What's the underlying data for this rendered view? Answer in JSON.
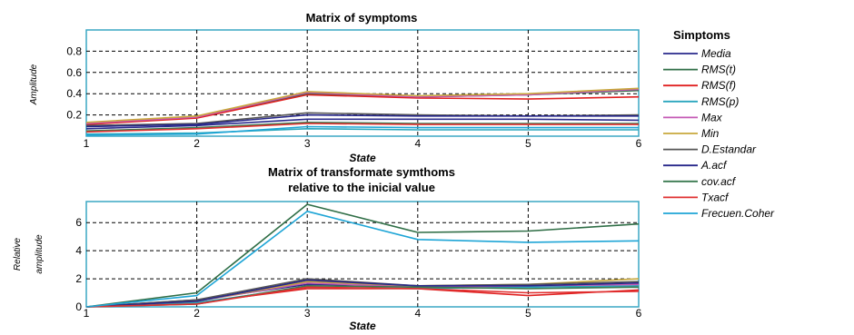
{
  "chart_data": [
    {
      "type": "line",
      "title": "Matrix of symptoms",
      "xlabel": "State",
      "ylabel": "Amplitude",
      "x": [
        1,
        2,
        3,
        4,
        5,
        6
      ],
      "xticks": [
        "1",
        "2",
        "3",
        "4",
        "5",
        "6"
      ],
      "xlim": [
        1,
        6
      ],
      "ylim": [
        0,
        1.0
      ],
      "yticks": [
        {
          "value": 0.2,
          "label": "0.2"
        },
        {
          "value": 0.4,
          "label": "0.4"
        },
        {
          "value": 0.6,
          "label": "0.6"
        },
        {
          "value": 0.8,
          "label": "0.8"
        }
      ],
      "grid": true,
      "series": [
        {
          "name": "Media",
          "values": [
            0.07,
            0.1,
            0.16,
            0.16,
            0.16,
            0.15
          ]
        },
        {
          "name": "RMS(t)",
          "values": [
            0.11,
            0.18,
            0.4,
            0.37,
            0.39,
            0.43
          ]
        },
        {
          "name": "RMS(f)",
          "values": [
            0.11,
            0.17,
            0.39,
            0.36,
            0.35,
            0.37
          ]
        },
        {
          "name": "RMS(p)",
          "values": [
            0.02,
            0.03,
            0.07,
            0.06,
            0.06,
            0.06
          ]
        },
        {
          "name": "Max",
          "values": [
            0.12,
            0.18,
            0.41,
            0.37,
            0.39,
            0.44
          ]
        },
        {
          "name": "Min",
          "values": [
            0.13,
            0.19,
            0.42,
            0.38,
            0.4,
            0.45
          ]
        },
        {
          "name": "D.Estandar",
          "values": [
            0.1,
            0.12,
            0.22,
            0.2,
            0.19,
            0.2
          ]
        },
        {
          "name": "A.acf",
          "values": [
            0.09,
            0.11,
            0.2,
            0.19,
            0.19,
            0.19
          ]
        },
        {
          "name": "cov.acf",
          "values": [
            0.05,
            0.08,
            0.13,
            0.12,
            0.12,
            0.12
          ]
        },
        {
          "name": "Txacf",
          "values": [
            0.04,
            0.07,
            0.12,
            0.11,
            0.11,
            0.11
          ]
        },
        {
          "name": "Frecuen.Coher",
          "values": [
            0.01,
            0.02,
            0.09,
            0.08,
            0.08,
            0.08
          ]
        }
      ]
    },
    {
      "type": "line",
      "title": "Matrix of transformate symthoms relative to the inicial value",
      "title_lines": [
        "Matrix of transformate symthoms",
        "relative to the inicial value"
      ],
      "xlabel": "State",
      "ylabel": "Relative amplitude",
      "ylabel_lines": [
        "Relative",
        "amplitude"
      ],
      "x": [
        1,
        2,
        3,
        4,
        5,
        6
      ],
      "xticks": [
        "1",
        "2",
        "3",
        "4",
        "5",
        "6"
      ],
      "xlim": [
        1,
        6
      ],
      "ylim": [
        0,
        7.5
      ],
      "yticks": [
        {
          "value": 0,
          "label": "0"
        },
        {
          "value": 2,
          "label": "2"
        },
        {
          "value": 4,
          "label": "4"
        },
        {
          "value": 6,
          "label": "6"
        }
      ],
      "grid": true,
      "series": [
        {
          "name": "Media",
          "values": [
            0,
            0.5,
            1.6,
            1.5,
            1.5,
            1.4
          ]
        },
        {
          "name": "RMS(t)",
          "values": [
            0,
            1.0,
            7.3,
            5.3,
            5.4,
            5.9
          ]
        },
        {
          "name": "RMS(f)",
          "values": [
            0,
            0.3,
            1.3,
            1.3,
            0.8,
            1.2
          ]
        },
        {
          "name": "RMS(p)",
          "values": [
            0,
            0.3,
            1.4,
            1.3,
            1.4,
            1.5
          ]
        },
        {
          "name": "Max",
          "values": [
            0,
            0.4,
            1.7,
            1.4,
            1.5,
            1.6
          ]
        },
        {
          "name": "Min",
          "values": [
            0,
            0.4,
            1.8,
            1.5,
            1.6,
            2.0
          ]
        },
        {
          "name": "D.Estandar",
          "values": [
            0,
            0.5,
            2.0,
            1.5,
            1.6,
            1.8
          ]
        },
        {
          "name": "A.acf",
          "values": [
            0,
            0.4,
            1.9,
            1.5,
            1.5,
            1.7
          ]
        },
        {
          "name": "cov.acf",
          "values": [
            0,
            0.2,
            1.5,
            1.4,
            1.3,
            1.4
          ]
        },
        {
          "name": "Txacf",
          "values": [
            0,
            0.2,
            1.4,
            1.3,
            1.0,
            1.1
          ]
        },
        {
          "name": "Frecuen.Coher",
          "values": [
            0,
            0.8,
            6.8,
            4.8,
            4.6,
            4.7
          ]
        }
      ]
    }
  ],
  "legend": {
    "title": "Simptoms",
    "placement": "right"
  },
  "colors": {
    "Media": "#2a2a8c",
    "RMS(t)": "#2f6e46",
    "RMS(f)": "#e02020",
    "RMS(p)": "#2aa6bd",
    "Max": "#c45ab4",
    "Min": "#c8a83c",
    "D.Estandar": "#555555",
    "A.acf": "#27278a",
    "cov.acf": "#3a7a50",
    "Txacf": "#e03030",
    "Frecuen.Coher": "#1ea5d6",
    "axes_frame": "#3aa7c4"
  }
}
